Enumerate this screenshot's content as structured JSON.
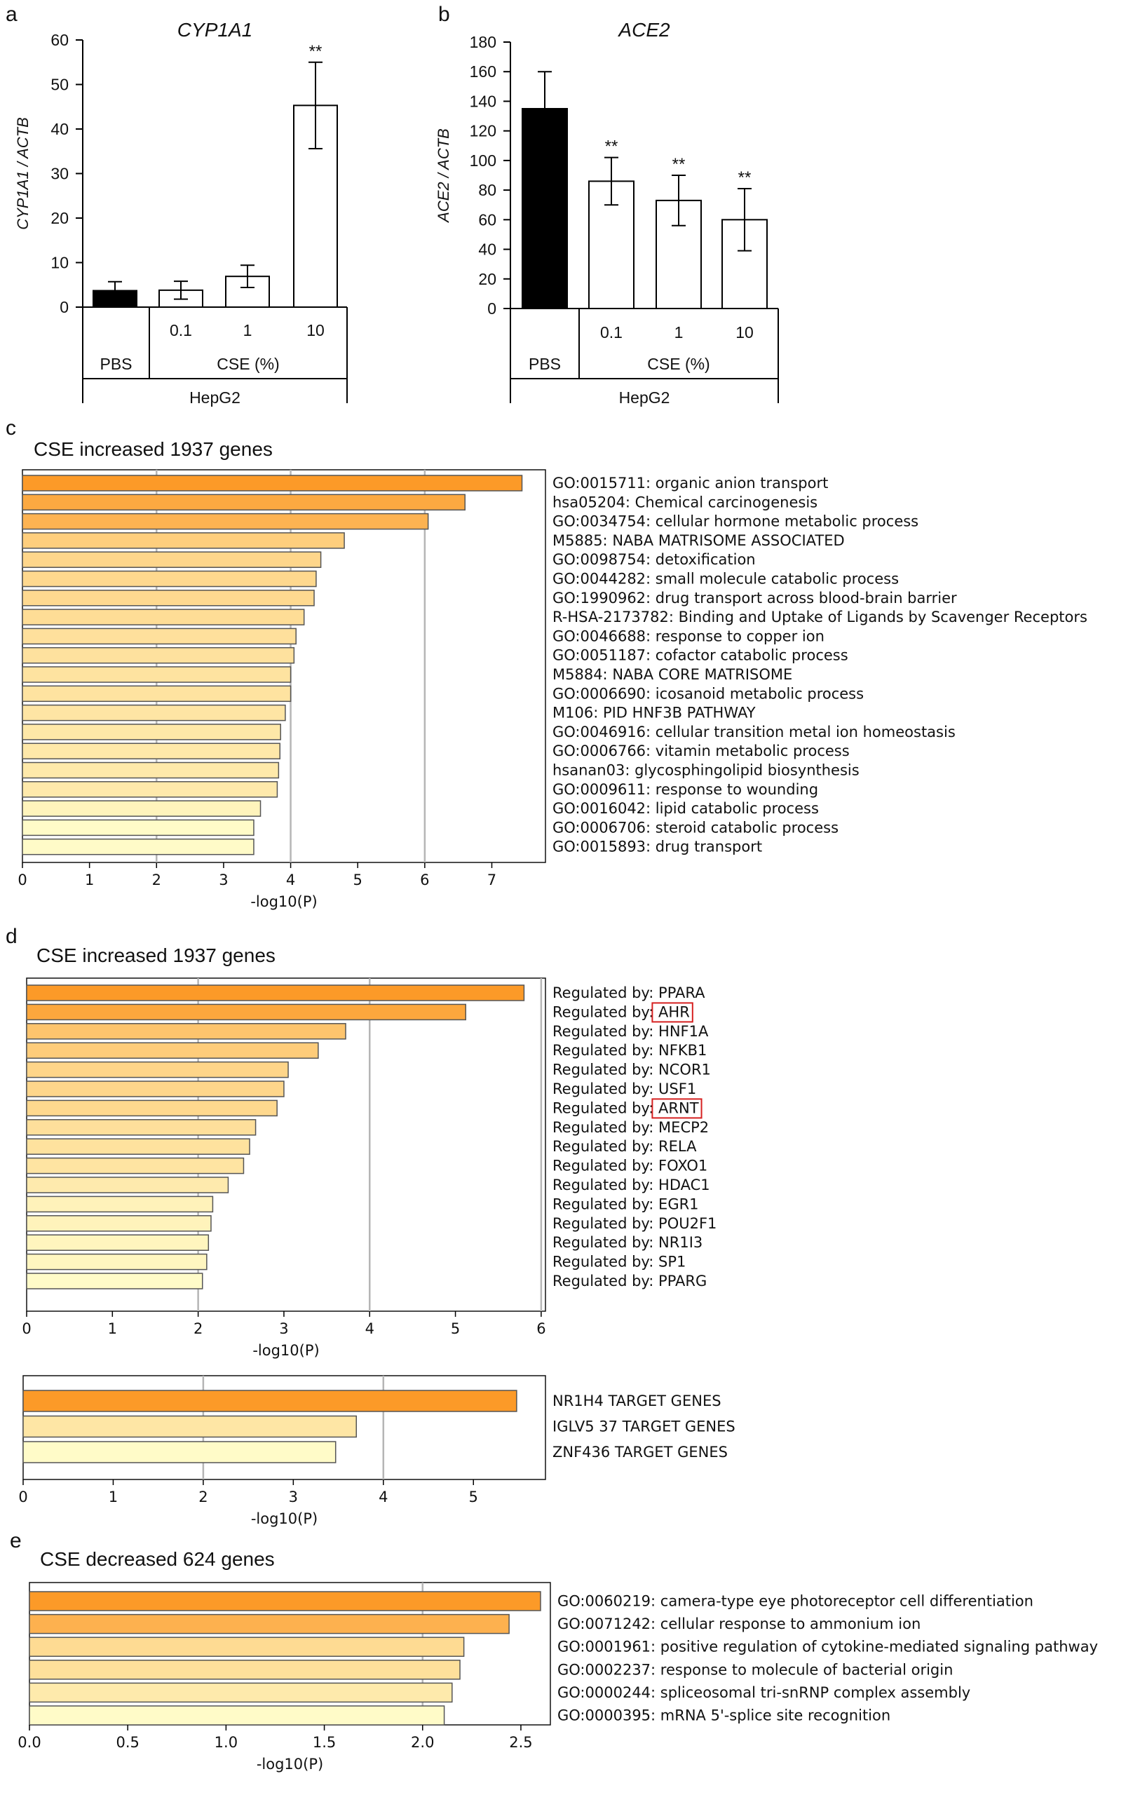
{
  "chart_data": [
    {
      "panel": "a",
      "type": "bar",
      "title": "CYP1A1",
      "ylabel": "CYP1A1 / ACTB",
      "ylim": [
        0,
        60
      ],
      "yticks": [
        0,
        10,
        20,
        30,
        40,
        50,
        60
      ],
      "categories": [
        "",
        "0.1",
        "1",
        "10"
      ],
      "values": [
        3.7,
        3.8,
        6.9,
        45.3
      ],
      "errors": [
        2.0,
        2.0,
        2.5,
        9.7
      ],
      "fill": [
        "#000000",
        "#ffffff",
        "#ffffff",
        "#ffffff"
      ],
      "significance": [
        "",
        "",
        "",
        "**"
      ],
      "group_labels": [
        "PBS",
        "CSE (%)"
      ],
      "cell_line": "HepG2"
    },
    {
      "panel": "b",
      "type": "bar",
      "title": "ACE2",
      "ylabel": "ACE2 / ACTB",
      "ylim": [
        0,
        180
      ],
      "yticks": [
        0,
        20,
        40,
        60,
        80,
        100,
        120,
        140,
        160,
        180
      ],
      "categories": [
        "",
        "0.1",
        "1",
        "10"
      ],
      "values": [
        135,
        86,
        73,
        60
      ],
      "errors": [
        25,
        16,
        17,
        21
      ],
      "fill": [
        "#000000",
        "#ffffff",
        "#ffffff",
        "#ffffff"
      ],
      "significance": [
        "",
        "**",
        "**",
        "**"
      ],
      "group_labels": [
        "PBS",
        "CSE (%)"
      ],
      "cell_line": "HepG2"
    },
    {
      "panel": "c",
      "type": "bar",
      "orientation": "horizontal",
      "title": "CSE increased 1937 genes",
      "xlabel": "-log10(P)",
      "xlim": [
        0,
        7.8
      ],
      "xticks": [
        "0",
        "1",
        "2",
        "3",
        "4",
        "5",
        "6",
        "7"
      ],
      "gridlines": [
        2,
        4,
        6
      ],
      "categories": [
        "GO:0015711: organic anion transport",
        "hsa05204: Chemical carcinogenesis",
        "GO:0034754: cellular hormone metabolic process",
        "M5885: NABA MATRISOME ASSOCIATED",
        "GO:0098754: detoxification",
        "GO:0044282: small molecule catabolic process",
        "GO:1990962: drug transport across blood-brain barrier",
        "R-HSA-2173782: Binding and Uptake of Ligands by Scavenger Receptors",
        "GO:0046688: response to copper ion",
        "GO:0051187: cofactor catabolic process",
        "M5884: NABA CORE MATRISOME",
        "GO:0006690: icosanoid metabolic process",
        "M106: PID HNF3B PATHWAY",
        "GO:0046916: cellular transition metal ion homeostasis",
        "GO:0006766: vitamin metabolic process",
        "hsanan03: glycosphingolipid biosynthesis",
        "GO:0009611: response to wounding",
        "GO:0016042: lipid catabolic process",
        "GO:0006706: steroid catabolic process",
        "GO:0015893: drug transport"
      ],
      "values": [
        7.45,
        6.6,
        6.05,
        4.8,
        4.45,
        4.38,
        4.35,
        4.2,
        4.08,
        4.05,
        4.0,
        4.0,
        3.92,
        3.85,
        3.84,
        3.82,
        3.8,
        3.55,
        3.45,
        3.45
      ]
    },
    {
      "panel": "d",
      "type": "bar",
      "orientation": "horizontal",
      "title": "CSE increased 1937 genes",
      "xlabel": "-log10(P)",
      "xlim": [
        0,
        6.05
      ],
      "xticks": [
        "0",
        "1",
        "2",
        "3",
        "4",
        "5",
        "6"
      ],
      "gridlines": [
        2,
        4,
        6
      ],
      "label_prefix": "Regulated by: ",
      "categories": [
        "PPARA",
        "AHR",
        "HNF1A",
        "NFKB1",
        "NCOR1",
        "USF1",
        "ARNT",
        "MECP2",
        "RELA",
        "FOXO1",
        "HDAC1",
        "EGR1",
        "POU2F1",
        "NR1I3",
        "SP1",
        "PPARG"
      ],
      "highlighted": [
        "AHR",
        "ARNT"
      ],
      "values": [
        5.8,
        5.12,
        3.72,
        3.4,
        3.05,
        3.0,
        2.92,
        2.67,
        2.6,
        2.53,
        2.35,
        2.17,
        2.15,
        2.12,
        2.1,
        2.05
      ]
    },
    {
      "panel": "d2",
      "type": "bar",
      "orientation": "horizontal",
      "xlabel": "-log10(P)",
      "xlim": [
        0,
        5.8
      ],
      "xticks": [
        "0",
        "1",
        "2",
        "3",
        "4",
        "5"
      ],
      "gridlines": [
        2,
        4
      ],
      "categories": [
        "NR1H4 TARGET GENES",
        "IGLV5 37 TARGET GENES",
        "ZNF436 TARGET GENES"
      ],
      "values": [
        5.48,
        3.7,
        3.47
      ]
    },
    {
      "panel": "e",
      "type": "bar",
      "orientation": "horizontal",
      "title": "CSE decreased 624 genes",
      "xlabel": "-log10(P)",
      "xlim": [
        0,
        2.65
      ],
      "xticks": [
        "0.0",
        "0.5",
        "1.0",
        "1.5",
        "2.0",
        "2.5"
      ],
      "gridlines": [
        2.0
      ],
      "categories": [
        "GO:0060219: camera-type eye photoreceptor cell differentiation",
        "GO:0071242: cellular response to ammonium ion",
        "GO:0001961: positive regulation of cytokine-mediated signaling pathway",
        "GO:0002237: response to molecule of bacterial origin",
        "GO:0000244: spliceosomal tri-snRNP complex assembly",
        "GO:0000395: mRNA 5'-splice site recognition"
      ],
      "values": [
        2.6,
        2.44,
        2.21,
        2.19,
        2.15,
        2.11
      ]
    }
  ]
}
